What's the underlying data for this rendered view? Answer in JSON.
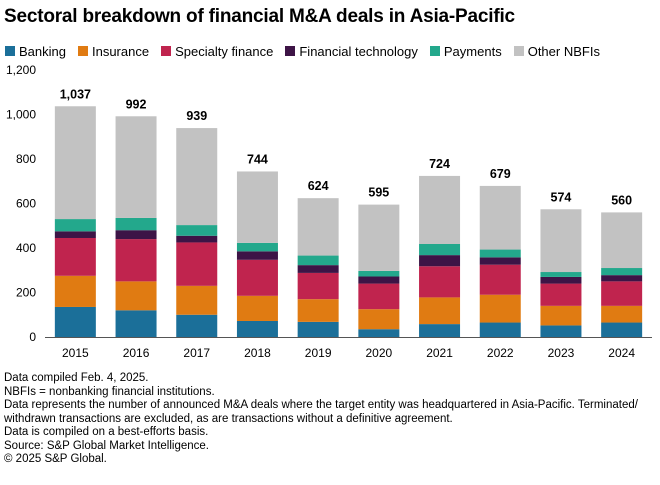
{
  "title": "Sectoral breakdown of financial M&A deals in Asia-Pacific",
  "legend": [
    {
      "label": "Banking",
      "color": "#1b6f99"
    },
    {
      "label": "Insurance",
      "color": "#e07b12"
    },
    {
      "label": "Specialty finance",
      "color": "#c0244e"
    },
    {
      "label": "Financial technology",
      "color": "#3d1446"
    },
    {
      "label": "Payments",
      "color": "#23a88c"
    },
    {
      "label": "Other NBFIs",
      "color": "#c2c2c2"
    }
  ],
  "chart_data": {
    "type": "bar",
    "stacked": true,
    "title": "Sectoral breakdown of financial M&A deals in Asia-Pacific",
    "categories": [
      "2015",
      "2016",
      "2017",
      "2018",
      "2019",
      "2020",
      "2021",
      "2022",
      "2023",
      "2024"
    ],
    "series": [
      {
        "name": "Banking",
        "values": [
          135,
          120,
          100,
          72,
          68,
          35,
          58,
          65,
          52,
          65
        ]
      },
      {
        "name": "Insurance",
        "values": [
          140,
          130,
          130,
          113,
          102,
          90,
          120,
          125,
          88,
          75
        ]
      },
      {
        "name": "Specialty finance",
        "values": [
          170,
          190,
          195,
          162,
          118,
          115,
          140,
          135,
          100,
          110
        ]
      },
      {
        "name": "Financial technology",
        "values": [
          30,
          40,
          30,
          38,
          35,
          32,
          50,
          33,
          30,
          28
        ]
      },
      {
        "name": "Payments",
        "values": [
          55,
          55,
          48,
          38,
          43,
          25,
          50,
          35,
          22,
          32
        ]
      },
      {
        "name": "Other NBFIs",
        "values": [
          507,
          457,
          436,
          321,
          258,
          298,
          306,
          286,
          282,
          250
        ]
      }
    ],
    "totals": [
      "1,037",
      "992",
      "939",
      "744",
      "624",
      "595",
      "724",
      "679",
      "574",
      "560"
    ],
    "ylim": [
      0,
      1200
    ],
    "yticks": [
      0,
      200,
      400,
      600,
      800,
      1000,
      1200
    ],
    "ytick_labels": [
      "0",
      "200",
      "400",
      "600",
      "800",
      "1,000",
      "1,200"
    ],
    "xlabel": "",
    "ylabel": "",
    "grid": false
  },
  "notes": [
    "Data compiled Feb. 4, 2025.",
    "NBFIs = nonbanking financial institutions.",
    "Data represents the number of announced M&A deals where the target entity was headquartered in Asia-Pacific. Terminated/ withdrawn transactions are excluded, as are transactions without a definitive agreement.",
    "Data is compiled on a best-efforts basis.",
    "Source: S&P Global Market Intelligence.",
    "© 2025 S&P Global."
  ]
}
